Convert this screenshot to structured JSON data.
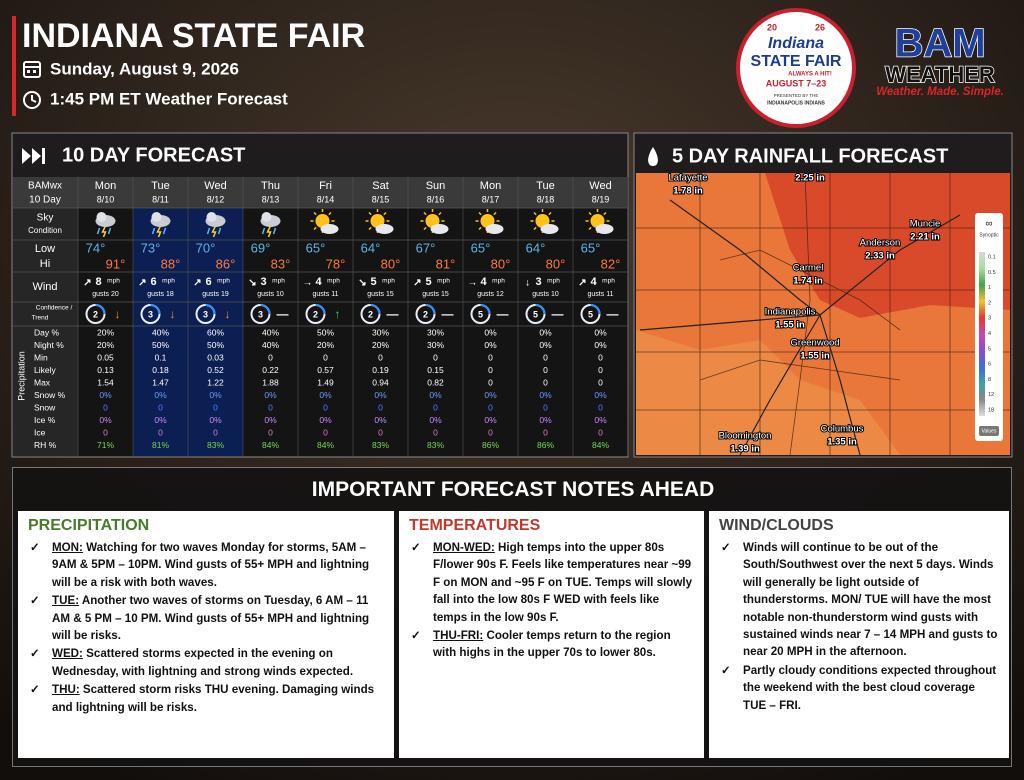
{
  "header": {
    "title": "INDIANA STATE FAIR",
    "date": "Sunday, August 9, 2026",
    "time": "1:45 PM ET Weather Forecast"
  },
  "fair_logo": {
    "year_left": "20",
    "year_right": "26",
    "name": "Indiana",
    "subtitle": "STATE FAIR",
    "tagline": "ALWAYS A HIT!",
    "dates": "AUGUST 7–23",
    "presented": "PRESENTED BY THE",
    "sponsor": "INDIANAPOLIS INDIANS"
  },
  "bam_logo": {
    "name": "BAM",
    "sub": "WEATHER",
    "slogan": "Weather. Made. Simple."
  },
  "forecast": {
    "title": "10 DAY FORECAST",
    "labels": {
      "brand": "BAMwx",
      "range": "10 Day",
      "sky": "Sky",
      "condition": "Condition",
      "low": "Low",
      "hi": "Hi",
      "wind": "Wind",
      "confidence": "Confidence /",
      "trend": "Trend",
      "precip": "Precipitation",
      "day_pct": "Day %",
      "night_pct": "Night %",
      "min": "Min",
      "likely": "Likely",
      "max": "Max",
      "snow_pct": "Snow %",
      "snow": "Snow",
      "ice_pct": "Ice %",
      "ice": "Ice",
      "rh": "RH %"
    },
    "days": [
      {
        "day": "Mon",
        "date": "8/10",
        "low": "74°",
        "hi": "91°",
        "dir": "↗",
        "wind": "8",
        "unit": "mph",
        "gusts": "gusts 20",
        "conf": "2",
        "trend": "↓",
        "day_pct": "20%",
        "night_pct": "20%",
        "min": "0.05",
        "likely": "0.13",
        "max": "1.54",
        "snow_pct": "0%",
        "snow": "0",
        "ice_pct": "0%",
        "ice": "0",
        "rh": "71%"
      },
      {
        "day": "Tue",
        "date": "8/11",
        "low": "73°",
        "hi": "88°",
        "dir": "↗",
        "wind": "6",
        "unit": "mph",
        "gusts": "gusts 18",
        "conf": "3",
        "trend": "↓",
        "day_pct": "40%",
        "night_pct": "50%",
        "min": "0.1",
        "likely": "0.18",
        "max": "1.47",
        "snow_pct": "0%",
        "snow": "0",
        "ice_pct": "0%",
        "ice": "0",
        "rh": "81%"
      },
      {
        "day": "Wed",
        "date": "8/12",
        "low": "70°",
        "hi": "86°",
        "dir": "↗",
        "wind": "6",
        "unit": "mph",
        "gusts": "gusts 19",
        "conf": "3",
        "trend": "↓",
        "day_pct": "60%",
        "night_pct": "50%",
        "min": "0.03",
        "likely": "0.52",
        "max": "1.22",
        "snow_pct": "0%",
        "snow": "0",
        "ice_pct": "0%",
        "ice": "0",
        "rh": "83%"
      },
      {
        "day": "Thu",
        "date": "8/13",
        "low": "69°",
        "hi": "83°",
        "dir": "↘",
        "wind": "3",
        "unit": "mph",
        "gusts": "gusts 10",
        "conf": "3",
        "trend": "—",
        "day_pct": "40%",
        "night_pct": "40%",
        "min": "0",
        "likely": "0.22",
        "max": "1.88",
        "snow_pct": "0%",
        "snow": "0",
        "ice_pct": "0%",
        "ice": "0",
        "rh": "84%"
      },
      {
        "day": "Fri",
        "date": "8/14",
        "low": "65°",
        "hi": "78°",
        "dir": "→",
        "wind": "4",
        "unit": "mph",
        "gusts": "gusts 11",
        "conf": "2",
        "trend": "↑",
        "day_pct": "50%",
        "night_pct": "20%",
        "min": "0",
        "likely": "0.57",
        "max": "1.49",
        "snow_pct": "0%",
        "snow": "0",
        "ice_pct": "0%",
        "ice": "0",
        "rh": "84%"
      },
      {
        "day": "Sat",
        "date": "8/15",
        "low": "64°",
        "hi": "80°",
        "dir": "↘",
        "wind": "5",
        "unit": "mph",
        "gusts": "gusts 15",
        "conf": "2",
        "trend": "—",
        "day_pct": "30%",
        "night_pct": "20%",
        "min": "0",
        "likely": "0.19",
        "max": "0.94",
        "snow_pct": "0%",
        "snow": "0",
        "ice_pct": "0%",
        "ice": "0",
        "rh": "83%"
      },
      {
        "day": "Sun",
        "date": "8/16",
        "low": "67°",
        "hi": "81°",
        "dir": "↗",
        "wind": "5",
        "unit": "mph",
        "gusts": "gusts 15",
        "conf": "2",
        "trend": "—",
        "day_pct": "30%",
        "night_pct": "30%",
        "min": "0",
        "likely": "0.15",
        "max": "0.82",
        "snow_pct": "0%",
        "snow": "0",
        "ice_pct": "0%",
        "ice": "0",
        "rh": "83%"
      },
      {
        "day": "Mon",
        "date": "8/17",
        "low": "65°",
        "hi": "80°",
        "dir": "→",
        "wind": "4",
        "unit": "mph",
        "gusts": "gusts 12",
        "conf": "5",
        "trend": "—",
        "day_pct": "0%",
        "night_pct": "0%",
        "min": "0",
        "likely": "0",
        "max": "0",
        "snow_pct": "0%",
        "snow": "0",
        "ice_pct": "0%",
        "ice": "0",
        "rh": "86%"
      },
      {
        "day": "Tue",
        "date": "8/18",
        "low": "64°",
        "hi": "80°",
        "dir": "↓",
        "wind": "3",
        "unit": "mph",
        "gusts": "gusts 10",
        "conf": "5",
        "trend": "—",
        "day_pct": "0%",
        "night_pct": "0%",
        "min": "0",
        "likely": "0",
        "max": "0",
        "snow_pct": "0%",
        "snow": "0",
        "ice_pct": "0%",
        "ice": "0",
        "rh": "86%"
      },
      {
        "day": "Wed",
        "date": "8/19",
        "low": "65°",
        "hi": "82°",
        "dir": "↗",
        "wind": "4",
        "unit": "mph",
        "gusts": "gusts 11",
        "conf": "5",
        "trend": "—",
        "day_pct": "0%",
        "night_pct": "0%",
        "min": "0",
        "likely": "0",
        "max": "0",
        "snow_pct": "0%",
        "snow": "0",
        "ice_pct": "0%",
        "ice": "0",
        "rh": "84%"
      }
    ]
  },
  "rainfall": {
    "title": "5 DAY RAINFALL FORECAST",
    "cities": [
      {
        "name": "Lafayette",
        "value": "1.78 in"
      },
      {
        "value": "2.25 in"
      },
      {
        "name": "Muncie",
        "value": "2.21 in"
      },
      {
        "name": "Anderson",
        "value": "2.33 in"
      },
      {
        "name": "Carmel",
        "value": "1.74 in"
      },
      {
        "name": "Indianapolis",
        "value": "1.55 in"
      },
      {
        "name": "Greenwood",
        "value": "1.55 in"
      },
      {
        "name": "Bloomington",
        "value": "1.39 in"
      },
      {
        "name": "Columbus",
        "value": "1.35 in"
      }
    ],
    "legend": {
      "title": "Synoptic",
      "labels": [
        "0.1",
        "0.5",
        "1",
        "2",
        "3",
        "4",
        "5",
        "6",
        "8",
        "12",
        "18"
      ],
      "button": "Values"
    }
  },
  "notes": {
    "title": "IMPORTANT FORECAST NOTES AHEAD",
    "sections": [
      {
        "heading": "PRECIPITATION",
        "items": [
          {
            "label": "MON:",
            "text": " Watching for two waves Monday for storms, 5AM – 9AM & 5PM – 10PM. Wind gusts of 55+ MPH and lightning will be a risk with both waves."
          },
          {
            "label": "TUE:",
            "text": " Another two waves of storms on Tuesday, 6 AM – 11 AM & 5 PM – 10 PM. Wind gusts of 55+ MPH and lightning will be risks."
          },
          {
            "label": "WED:",
            "text": " Scattered storms expected in the evening on Wednesday, with lightning and strong winds expected."
          },
          {
            "label": "THU:",
            "text": " Scattered storm risks THU evening. Damaging winds and lightning will be risks."
          }
        ]
      },
      {
        "heading": "TEMPERATURES",
        "items": [
          {
            "label": "MON-WED:",
            "text": " High temps into the upper 80s F/lower 90s F. Feels like temperatures near ~99 F on MON and ~95 F on TUE. Temps will slowly fall into the low 80s F WED with feels like temps in the low 90s F."
          },
          {
            "label": "THU-FRI:",
            "text": " Cooler temps return to the region with highs in the upper 70s to lower 80s."
          }
        ]
      },
      {
        "heading": "WIND/CLOUDS",
        "items": [
          {
            "text": "Winds will continue to be out of the South/Southwest over the next 5 days. Winds will generally be light outside of thunderstorms.  MON/ TUE will have the most notable non-thunderstorm wind gusts with sustained winds near 7 – 14 MPH and gusts to near 20 MPH in the afternoon."
          },
          {
            "text": "Partly cloudy conditions expected throughout the weekend with the best cloud coverage TUE – FRI."
          }
        ]
      }
    ]
  }
}
